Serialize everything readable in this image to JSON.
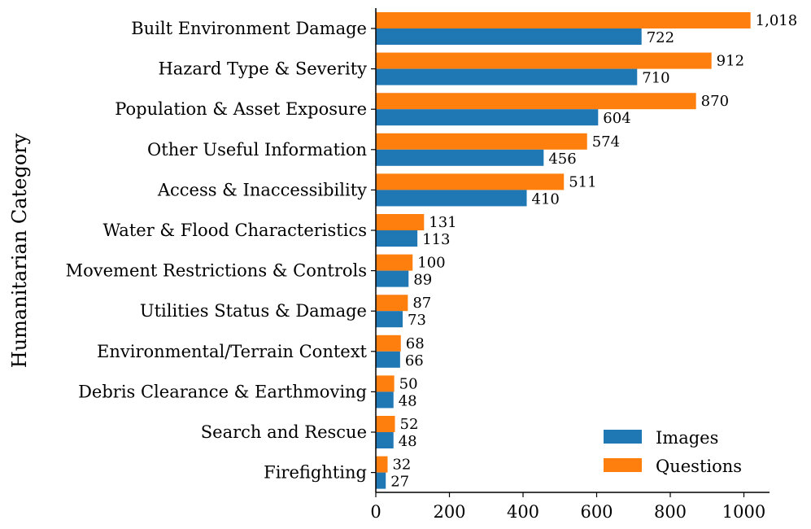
{
  "chart_data": {
    "type": "bar",
    "orientation": "horizontal",
    "ylabel": "Humanitarian Category",
    "xlabel": "",
    "xlim": [
      0,
      1070
    ],
    "xticks": [
      0,
      200,
      400,
      600,
      800,
      1000
    ],
    "categories": [
      "Built Environment Damage",
      "Hazard Type & Severity",
      "Population & Asset Exposure",
      "Other Useful Information",
      "Access & Inaccessibility",
      "Water & Flood Characteristics",
      "Movement Restrictions & Controls",
      "Utilities Status & Damage",
      "Environmental/Terrain Context",
      "Debris Clearance & Earthmoving",
      "Search and Rescue",
      "Firefighting"
    ],
    "series": [
      {
        "name": "Images",
        "color": "#1f77b4",
        "values": [
          722,
          710,
          604,
          456,
          410,
          113,
          89,
          73,
          66,
          48,
          48,
          27
        ],
        "labels": [
          "722",
          "710",
          "604",
          "456",
          "410",
          "113",
          "89",
          "73",
          "66",
          "48",
          "48",
          "27"
        ]
      },
      {
        "name": "Questions",
        "color": "#ff7f0e",
        "values": [
          1018,
          912,
          870,
          574,
          511,
          131,
          100,
          87,
          68,
          50,
          52,
          32
        ],
        "labels": [
          "1,018",
          "912",
          "870",
          "574",
          "511",
          "131",
          "100",
          "87",
          "68",
          "50",
          "52",
          "32"
        ]
      }
    ],
    "legend": {
      "position": "lower-right",
      "entries": [
        "Images",
        "Questions"
      ]
    },
    "grid": false
  }
}
